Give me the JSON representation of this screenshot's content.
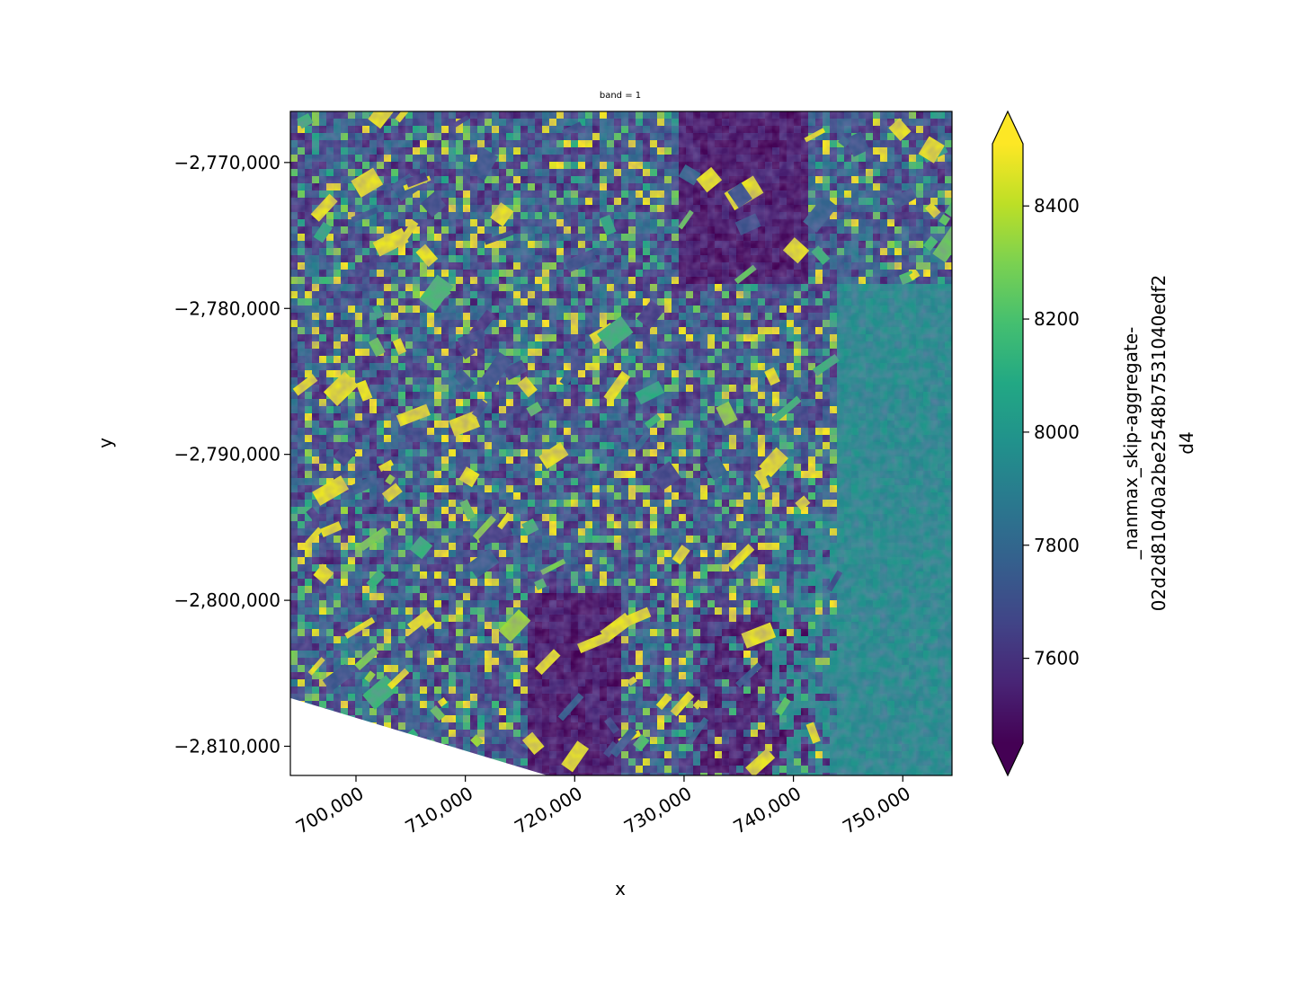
{
  "chart_data": {
    "type": "heatmap",
    "title": "band = 1",
    "xlabel": "x",
    "ylabel": "y",
    "xlim": [
      694000,
      754500
    ],
    "ylim": [
      -2812000,
      -2766500
    ],
    "x_ticks": [
      {
        "value": 700000,
        "label": "700,000"
      },
      {
        "value": 710000,
        "label": "710,000"
      },
      {
        "value": 720000,
        "label": "720,000"
      },
      {
        "value": 730000,
        "label": "730,000"
      },
      {
        "value": 740000,
        "label": "740,000"
      },
      {
        "value": 750000,
        "label": "750,000"
      }
    ],
    "y_ticks": [
      {
        "value": -2770000,
        "label": "−2,770,000"
      },
      {
        "value": -2780000,
        "label": "−2,780,000"
      },
      {
        "value": -2790000,
        "label": "−2,790,000"
      },
      {
        "value": -2800000,
        "label": "−2,800,000"
      },
      {
        "value": -2810000,
        "label": "−2,810,000"
      }
    ],
    "x_tick_rotation_deg": 30,
    "colorbar": {
      "label_lines": [
        "_nanmax_skip-aggregate-",
        "02d2d81040a2be2548b7531040edf2",
        "d4"
      ],
      "colormap": "viridis",
      "vmin": 7450,
      "vmax": 8510,
      "extend": "both",
      "ticks": [
        {
          "value": 7600,
          "label": "7600"
        },
        {
          "value": 7800,
          "label": "7800"
        },
        {
          "value": 8000,
          "label": "8000"
        },
        {
          "value": 8200,
          "label": "8200"
        },
        {
          "value": 8400,
          "label": "8400"
        }
      ]
    },
    "nodata_boundary": [
      [
        694000,
        -2806700
      ],
      [
        717500,
        -2812000
      ]
    ],
    "grid": false,
    "legend": "none"
  }
}
